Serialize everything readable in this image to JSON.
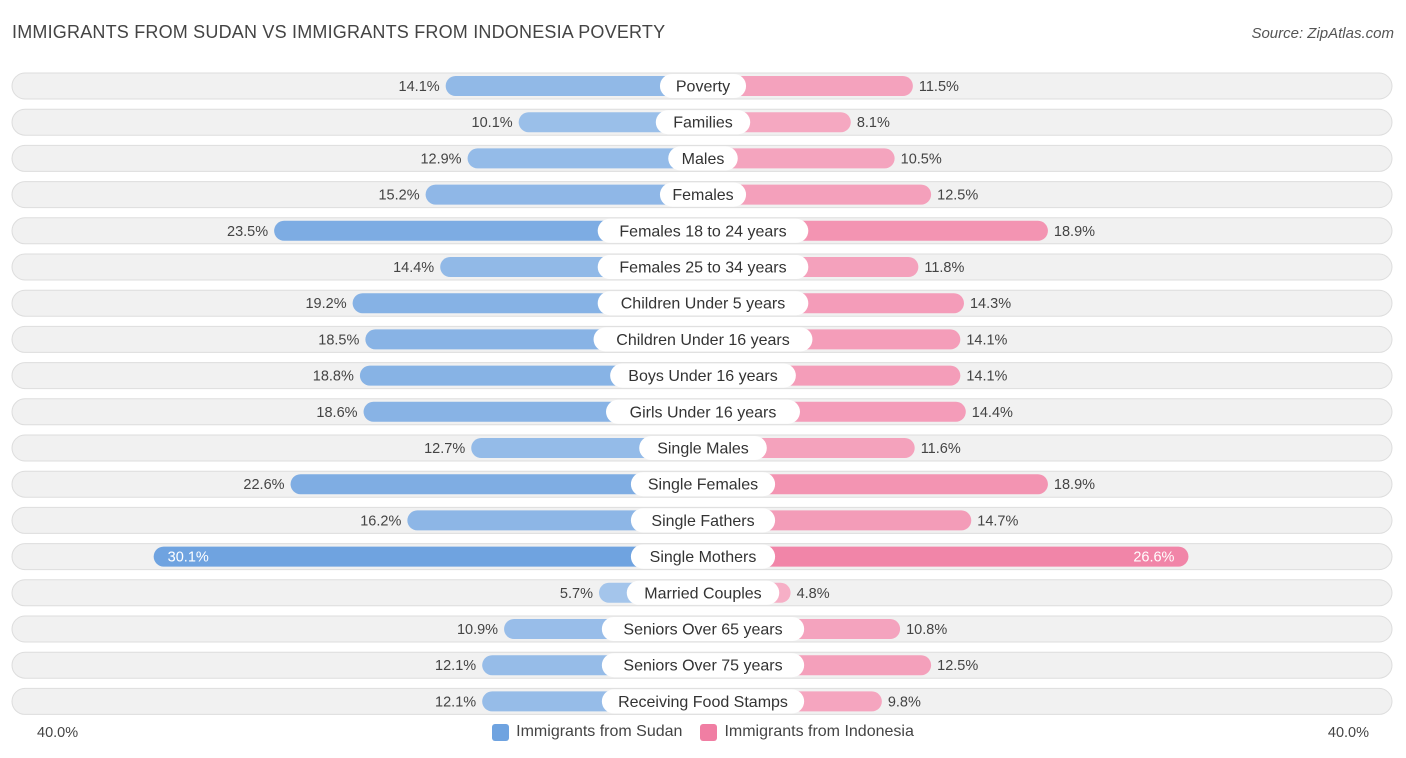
{
  "title": "IMMIGRANTS FROM SUDAN VS IMMIGRANTS FROM INDONESIA POVERTY",
  "source": "Source: ZipAtlas.com",
  "colors": {
    "left": "#6fa3e0",
    "right": "#f07ea3"
  },
  "chart_data": {
    "type": "bar",
    "orientation": "horizontal-diverging",
    "categories": [
      "Poverty",
      "Families",
      "Males",
      "Females",
      "Females 18 to 24 years",
      "Females 25 to 34 years",
      "Children Under 5 years",
      "Children Under 16 years",
      "Boys Under 16 years",
      "Girls Under 16 years",
      "Single Males",
      "Single Females",
      "Single Fathers",
      "Single Mothers",
      "Married Couples",
      "Seniors Over 65 years",
      "Seniors Over 75 years",
      "Receiving Food Stamps"
    ],
    "series": [
      {
        "name": "Immigrants from Sudan",
        "values": [
          14.1,
          10.1,
          12.9,
          15.2,
          23.5,
          14.4,
          19.2,
          18.5,
          18.8,
          18.6,
          12.7,
          22.6,
          16.2,
          30.1,
          5.7,
          10.9,
          12.1,
          12.1
        ],
        "labels": [
          "14.1%",
          "10.1%",
          "12.9%",
          "15.2%",
          "23.5%",
          "14.4%",
          "19.2%",
          "18.5%",
          "18.8%",
          "18.6%",
          "12.7%",
          "22.6%",
          "16.2%",
          "30.1%",
          "5.7%",
          "10.9%",
          "12.1%",
          "12.1%"
        ]
      },
      {
        "name": "Immigrants from Indonesia",
        "values": [
          11.5,
          8.1,
          10.5,
          12.5,
          18.9,
          11.8,
          14.3,
          14.1,
          14.1,
          14.4,
          11.6,
          18.9,
          14.7,
          26.6,
          4.8,
          10.8,
          12.5,
          9.8
        ],
        "labels": [
          "11.5%",
          "8.1%",
          "10.5%",
          "12.5%",
          "18.9%",
          "11.8%",
          "14.3%",
          "14.1%",
          "14.1%",
          "14.4%",
          "11.6%",
          "18.9%",
          "14.7%",
          "26.6%",
          "4.8%",
          "10.8%",
          "12.5%",
          "9.8%"
        ]
      }
    ],
    "xlim": [
      0,
      40
    ],
    "axis_labels": {
      "left": "40.0%",
      "right": "40.0%"
    },
    "legend": [
      "Immigrants from Sudan",
      "Immigrants from Indonesia"
    ],
    "legend_position": "bottom-center"
  }
}
